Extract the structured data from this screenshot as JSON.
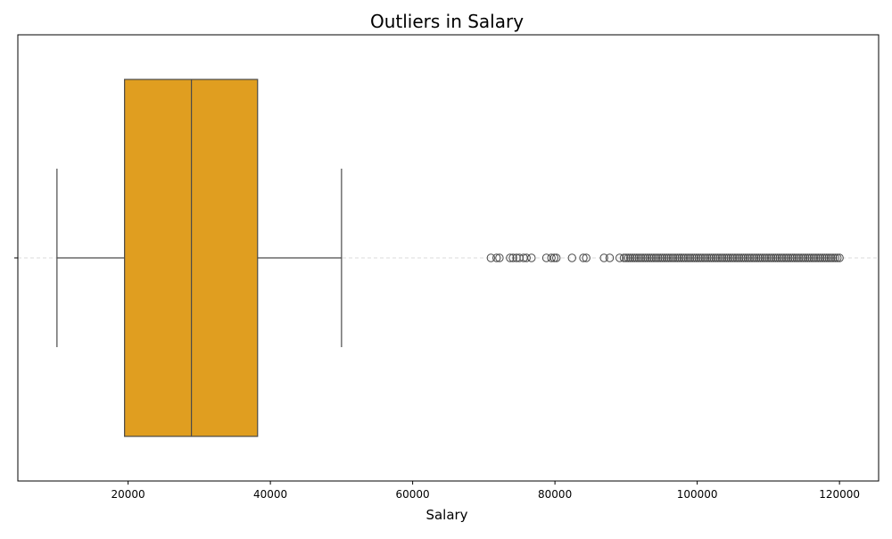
{
  "chart_data": {
    "type": "boxplot",
    "title": "Outliers in Salary",
    "xlabel": "Salary",
    "ylabel": "",
    "xlim": [
      4500,
      125500
    ],
    "xticks": [
      20000,
      40000,
      60000,
      80000,
      100000,
      120000
    ],
    "xtick_labels": [
      "20000",
      "40000",
      "60000",
      "80000",
      "100000",
      "120000"
    ],
    "orientation": "horizontal",
    "color": "#e09e20",
    "edge_color": "#4a4a4a",
    "grid": "y-center-dashed",
    "box": {
      "whisker_low": 10000,
      "q1": 19500,
      "median": 28900,
      "q3": 38200,
      "whisker_high": 50000
    },
    "outliers": [
      71000,
      71800,
      72200,
      73700,
      74100,
      74600,
      75000,
      75600,
      76000,
      76700,
      78800,
      79500,
      79900,
      80200,
      82400,
      84000,
      84400,
      86900,
      87700,
      89100,
      89700,
      90000,
      90300,
      90600,
      90900,
      91200,
      91500,
      91800,
      92100,
      92400,
      92700,
      93000,
      93300,
      93600,
      93900,
      94200,
      94500,
      94800,
      95100,
      95400,
      95700,
      96000,
      96300,
      96600,
      96900,
      97200,
      97500,
      97800,
      98100,
      98400,
      98700,
      99000,
      99300,
      99600,
      99900,
      100200,
      100500,
      100800,
      101100,
      101400,
      101700,
      102000,
      102300,
      102600,
      102900,
      103200,
      103500,
      103800,
      104100,
      104400,
      104700,
      105000,
      105300,
      105600,
      105900,
      106200,
      106500,
      106800,
      107100,
      107400,
      107700,
      108000,
      108300,
      108600,
      108900,
      109200,
      109500,
      109800,
      110100,
      110400,
      110700,
      111000,
      111300,
      111600,
      111900,
      112200,
      112500,
      112800,
      113100,
      113400,
      113700,
      114000,
      114300,
      114600,
      114900,
      115200,
      115500,
      115800,
      116100,
      116400,
      116700,
      117000,
      117300,
      117600,
      117900,
      118200,
      118500,
      118800,
      119100,
      119400,
      119700,
      120000
    ]
  }
}
